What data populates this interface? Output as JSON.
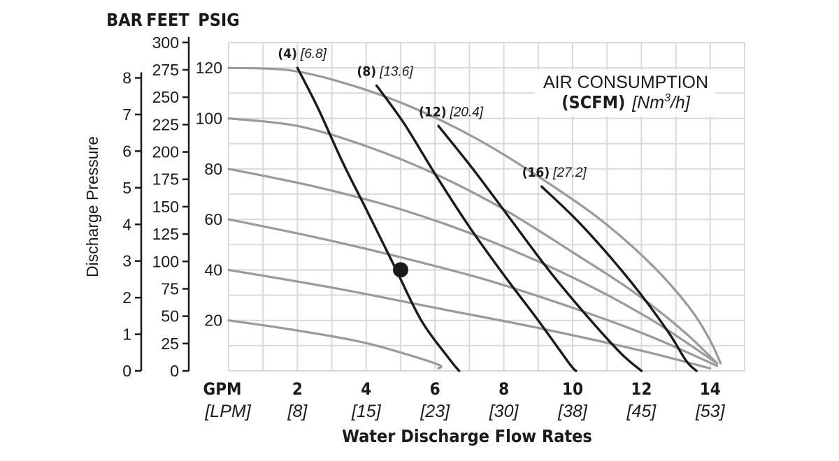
{
  "chart_data": {
    "type": "line",
    "xlabel": "Water Discharge Flow Rates",
    "ylabel": "Discharge Pressure",
    "x_unit_primary": "GPM",
    "x_unit_secondary": "[LPM]",
    "x_ticks": [
      {
        "gpm": 2,
        "label": "2",
        "label2": "[8]"
      },
      {
        "gpm": 4,
        "label": "4",
        "label2": "[15]"
      },
      {
        "gpm": 6,
        "label": "6",
        "label2": "[23]"
      },
      {
        "gpm": 8,
        "label": "8",
        "label2": "[30]"
      },
      {
        "gpm": 10,
        "label": "10",
        "label2": "[38]"
      },
      {
        "gpm": 12,
        "label": "12",
        "label2": "[45]"
      },
      {
        "gpm": 14,
        "label": "14",
        "label2": "[53]"
      }
    ],
    "xlim": [
      0,
      15
    ],
    "ylim_psig": [
      0,
      130
    ],
    "y_axes": [
      {
        "header": "BAR",
        "values": [
          0,
          1,
          2,
          3,
          4,
          5,
          6,
          7,
          8
        ],
        "psig_per_unit": 14.5038
      },
      {
        "header": "FEET",
        "values": [
          0,
          25,
          50,
          75,
          100,
          125,
          150,
          175,
          200,
          225,
          250,
          275,
          300
        ],
        "psig_per_unit": 0.4335
      },
      {
        "header": "PSIG",
        "values": [
          20,
          40,
          60,
          80,
          100,
          120
        ],
        "psig_per_unit": 1
      }
    ],
    "legend": {
      "line1": "AIR CONSUMPTION",
      "line2_bold": "(SCFM)",
      "line2_italic_prefix": "[Nm",
      "line2_sup": "3",
      "line2_italic_suffix": "/h]"
    },
    "air_consumption_curves": [
      {
        "scfm": "(4)",
        "nm3h": "[6.8]",
        "points": [
          [
            2.0,
            120
          ],
          [
            2.6,
            104
          ],
          [
            3.3,
            83
          ],
          [
            4.0,
            64
          ],
          [
            4.8,
            42
          ],
          [
            5.6,
            20
          ],
          [
            6.4,
            5
          ],
          [
            6.7,
            0
          ]
        ]
      },
      {
        "scfm": "(8)",
        "nm3h": "[13.6]",
        "points": [
          [
            4.3,
            113
          ],
          [
            5.1,
            98
          ],
          [
            6.0,
            78
          ],
          [
            7.0,
            57
          ],
          [
            8.0,
            38
          ],
          [
            9.0,
            20
          ],
          [
            9.9,
            3
          ],
          [
            10.1,
            0
          ]
        ]
      },
      {
        "scfm": "(12)",
        "nm3h": "[20.4]",
        "points": [
          [
            6.1,
            97
          ],
          [
            7.1,
            80
          ],
          [
            8.2,
            60
          ],
          [
            9.3,
            40
          ],
          [
            10.4,
            22
          ],
          [
            11.4,
            7
          ],
          [
            12.0,
            0
          ]
        ]
      },
      {
        "scfm": "(16)",
        "nm3h": "[27.2]",
        "points": [
          [
            9.1,
            73
          ],
          [
            10.1,
            60
          ],
          [
            11.1,
            45
          ],
          [
            12.0,
            30
          ],
          [
            12.8,
            15
          ],
          [
            13.3,
            4
          ],
          [
            13.6,
            0
          ]
        ]
      }
    ],
    "pressure_curves": [
      {
        "points": [
          [
            0,
            120
          ],
          [
            1.8,
            119
          ],
          [
            3.6,
            113
          ],
          [
            5.4,
            104
          ],
          [
            7.2,
            92
          ],
          [
            9.0,
            77
          ],
          [
            10.8,
            60
          ],
          [
            12.3,
            42
          ],
          [
            13.4,
            25
          ],
          [
            14.0,
            12
          ],
          [
            14.3,
            3
          ]
        ]
      },
      {
        "points": [
          [
            0,
            100
          ],
          [
            2.0,
            97
          ],
          [
            4.0,
            89
          ],
          [
            6.0,
            78
          ],
          [
            8.0,
            64
          ],
          [
            10.0,
            47
          ],
          [
            11.8,
            31
          ],
          [
            13.2,
            16
          ],
          [
            14.2,
            3
          ]
        ]
      },
      {
        "points": [
          [
            0,
            80
          ],
          [
            2.5,
            73
          ],
          [
            5.0,
            64
          ],
          [
            7.5,
            52
          ],
          [
            10.0,
            37
          ],
          [
            12.2,
            21
          ],
          [
            14.2,
            3
          ]
        ]
      },
      {
        "points": [
          [
            0,
            60
          ],
          [
            2.5,
            53
          ],
          [
            5.0,
            45
          ],
          [
            7.5,
            36
          ],
          [
            10.0,
            25
          ],
          [
            12.2,
            14
          ],
          [
            14.2,
            2
          ]
        ]
      },
      {
        "points": [
          [
            0,
            40
          ],
          [
            3.0,
            33
          ],
          [
            6.0,
            25
          ],
          [
            9.0,
            17
          ],
          [
            12.0,
            8
          ],
          [
            14.0,
            1
          ]
        ]
      },
      {
        "points": [
          [
            0,
            20
          ],
          [
            2.0,
            16
          ],
          [
            4.0,
            11
          ],
          [
            6.0,
            3
          ],
          [
            6.1,
            1
          ]
        ]
      }
    ],
    "marker": {
      "gpm": 5.0,
      "psig": 40
    }
  }
}
